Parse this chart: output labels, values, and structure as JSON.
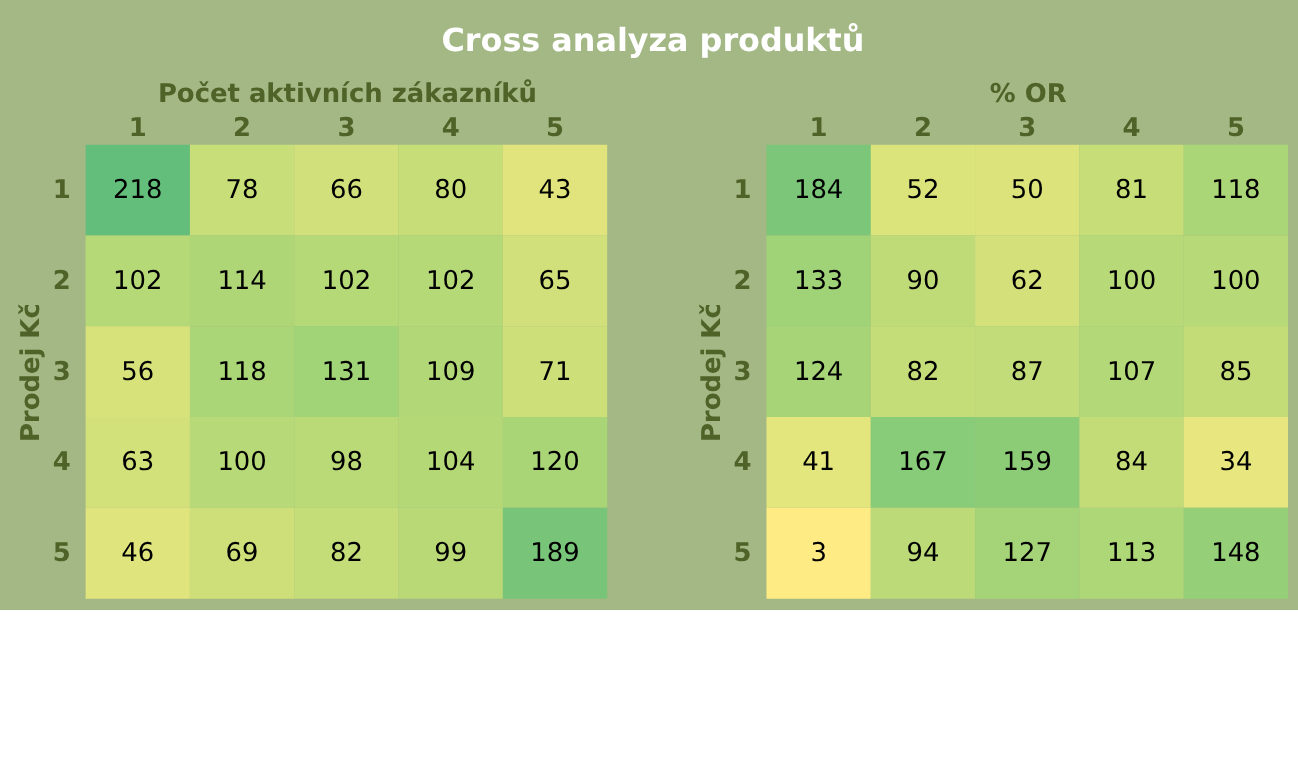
{
  "chart_data": [
    {
      "type": "heatmap",
      "title": "Cross analyza produktů",
      "xlabel": "Počet aktivních zákazníků",
      "ylabel": "Prodej Kč",
      "categories": [
        "1",
        "2",
        "3",
        "4",
        "5"
      ],
      "y_categories": [
        "1",
        "2",
        "3",
        "4",
        "5"
      ],
      "data_labels": true,
      "cells": [
        [
          218,
          78,
          66,
          80,
          43
        ],
        [
          102,
          114,
          102,
          102,
          65
        ],
        [
          56,
          118,
          131,
          109,
          71
        ],
        [
          63,
          100,
          98,
          104,
          120
        ],
        [
          46,
          69,
          82,
          99,
          189
        ]
      ]
    },
    {
      "type": "heatmap",
      "xlabel": "% OR",
      "ylabel": "Prodej Kč",
      "categories": [
        "1",
        "2",
        "3",
        "4",
        "5"
      ],
      "y_categories": [
        "1",
        "2",
        "3",
        "4",
        "5"
      ],
      "data_labels": true,
      "cells": [
        [
          184,
          52,
          50,
          81,
          118
        ],
        [
          133,
          90,
          62,
          100,
          100
        ],
        [
          124,
          82,
          87,
          107,
          85
        ],
        [
          41,
          167,
          159,
          84,
          34
        ],
        [
          3,
          94,
          127,
          113,
          148
        ]
      ]
    }
  ]
}
